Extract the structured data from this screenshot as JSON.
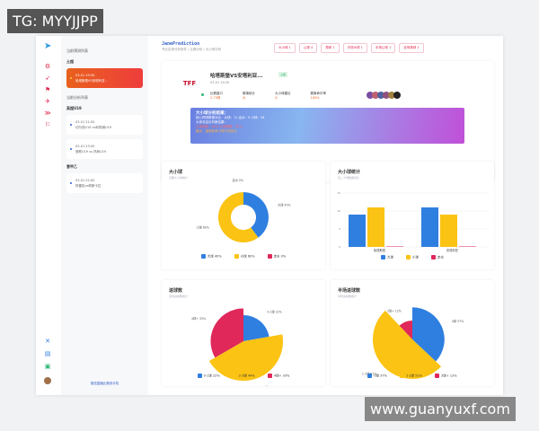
{
  "watermarks": {
    "top_left": "TG: MYYJJPP",
    "bottom_right": "www.guanyuxf.com"
  },
  "rail": {
    "icons": [
      "paper-plane-icon",
      "soccer-icon",
      "send-icon",
      "flag-icon",
      "rocket-icon",
      "share-icon",
      "flag-icon",
      "tool-icon",
      "document-icon",
      "chat-icon"
    ]
  },
  "sidebar": {
    "section1": "当前预测列表",
    "group1": "土超",
    "active_card": {
      "time": "03-01 19:30",
      "title": "哈塔斯堡VS安塔利亚..."
    },
    "section2": "当前分析列表",
    "group2": "英超U19",
    "cards2": [
      {
        "time": "03-01 21:00",
        "title": "切尔西U19 vs利物浦U19"
      },
      {
        "time": "03-01 23:00",
        "title": "曼联U19 vs 热刺U19"
      }
    ],
    "group3": "意甲乙",
    "cards3": [
      {
        "time": "03-01 22:00",
        "title": "阿雷佐vs佩斯卡拉"
      }
    ],
    "footer": "推送直播比赛到手机"
  },
  "header": {
    "brand": "JanePrediction",
    "breadcrumb": "专业足球分析软件 / 比赛分析 / 大小球分析",
    "tabs": [
      "大小球 1",
      "让球 4",
      "角球 1",
      "半场大球 1",
      "半场让球 1",
      "全场角球 1"
    ]
  },
  "match": {
    "title": "哈塔斯堡VS安塔利亚...",
    "badge": "土超",
    "time": "03-01 19:30",
    "logo": "TFF",
    "stats": [
      {
        "label": "比赛盘口",
        "value": "2.75球"
      },
      {
        "label": "赛事统计",
        "value": "大"
      },
      {
        "label": "大小球建议",
        "value": "小"
      },
      {
        "label": "赛事命中率",
        "value": "100%"
      }
    ],
    "analysis": {
      "title": "大小球分析结果：",
      "line1": "核心预测数据对比：大球：11  走水：0  小球：16",
      "line2": "大球总结论判断结果：",
      "line3": "小球指数：60%  大球指数：40%",
      "line4": "建议：谨慎参考小球方向投注"
    }
  },
  "colors": {
    "blue": "#2f7fe0",
    "yellow": "#fbc313",
    "red": "#e0285a"
  },
  "chart_data": [
    {
      "type": "pie",
      "title": "大小球",
      "subtitle": "近期大小球统计",
      "series": [
        {
          "name": "大球",
          "value": 40
        },
        {
          "name": "小球",
          "value": 60
        },
        {
          "name": "走水",
          "value": 0
        }
      ],
      "labels": [
        "大球 40%",
        "小球 60%",
        "走水 0%"
      ]
    },
    {
      "type": "bar",
      "title": "大小球统计",
      "subtitle": "近二十场数据对比",
      "categories": [
        "哈塔斯堡",
        "安塔利亚"
      ],
      "ylim": [
        0,
        15
      ],
      "yticks": [
        0,
        5,
        10,
        15
      ],
      "grid": true,
      "series": [
        {
          "name": "大球",
          "values": [
            9,
            11
          ]
        },
        {
          "name": "小球",
          "values": [
            11,
            9
          ]
        },
        {
          "name": "走水",
          "values": [
            0,
            0
          ]
        }
      ]
    },
    {
      "type": "pie",
      "title": "进球数",
      "subtitle": "全场进球数统计",
      "rose": true,
      "series": [
        {
          "name": "0-1球",
          "value": 22
        },
        {
          "name": "2-3球",
          "value": 44
        },
        {
          "name": "4球+",
          "value": 33
        }
      ],
      "labels": [
        "0-1球 22%",
        "2-3球 44%",
        "4球+ 33%"
      ]
    },
    {
      "type": "pie",
      "title": "半场进球数",
      "subtitle": "半场进球数统计",
      "rose": true,
      "series": [
        {
          "name": "0球",
          "value": 37
        },
        {
          "name": "1-2球",
          "value": 51
        },
        {
          "name": "3球+",
          "value": 12
        }
      ],
      "labels": [
        "0球 37%",
        "1-2球 51%",
        "3球+ 12%"
      ]
    }
  ]
}
